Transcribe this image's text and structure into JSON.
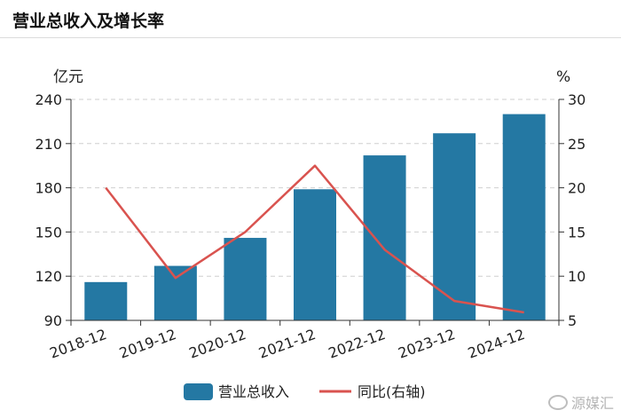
{
  "header": {
    "title": "营业总收入及增长率"
  },
  "watermark": {
    "text": "源媒汇"
  },
  "chart_data": {
    "type": "bar+line",
    "title": "营业总收入及增长率",
    "categories": [
      "2018-12",
      "2019-12",
      "2020-12",
      "2021-12",
      "2022-12",
      "2023-12",
      "2024-12"
    ],
    "series": [
      {
        "name": "营业总收入",
        "type": "bar",
        "axis": "left",
        "values": [
          116,
          127,
          146,
          179,
          202,
          217,
          230
        ]
      },
      {
        "name": "同比(右轴)",
        "type": "line",
        "axis": "right",
        "values": [
          20,
          9.8,
          15,
          22.5,
          13,
          7.2,
          5.9
        ]
      }
    ],
    "yleft": {
      "label": "亿元",
      "ylim": [
        90,
        240
      ],
      "ticks": [
        90,
        120,
        150,
        180,
        210,
        240
      ]
    },
    "yright": {
      "label": "%",
      "ylim": [
        5,
        30
      ],
      "ticks": [
        5,
        10,
        15,
        20,
        25,
        30
      ]
    },
    "colors": {
      "bar": "#2478a3",
      "line": "#d9534f",
      "grid": "#cfcfcf",
      "axis": "#333333"
    },
    "grid": true,
    "legend_position": "bottom-center"
  }
}
